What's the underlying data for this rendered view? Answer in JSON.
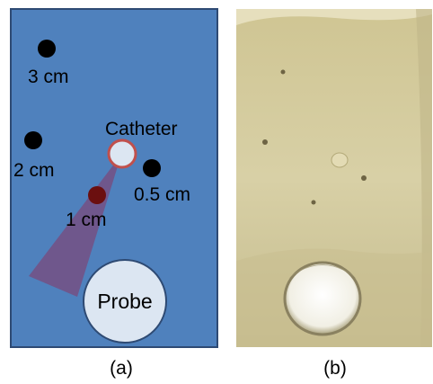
{
  "panel_a": {
    "caption": "(a)",
    "colors": {
      "background": "#4f81bd",
      "border": "#2e4a73",
      "marker": "#000000",
      "target_marker": "#6b0f0f",
      "beam": "#7a4a7c",
      "catheter_fill": "#dce6f2",
      "catheter_stroke": "#c0504d",
      "probe_fill": "#dce6f2",
      "probe_stroke": "#2e4a73"
    },
    "markers": [
      {
        "name": "marker-3cm",
        "label": "3 cm"
      },
      {
        "name": "marker-2cm",
        "label": "2 cm"
      },
      {
        "name": "marker-0-5cm",
        "label": "0.5 cm"
      },
      {
        "name": "marker-1cm",
        "label": "1 cm"
      }
    ],
    "catheter_label": "Catheter",
    "probe_label": "Probe"
  },
  "panel_b": {
    "caption": "(b)",
    "colors": {
      "gel": "#d9cfa2",
      "gel_dark": "#b6a978",
      "hole": "#f4f3ea"
    }
  }
}
